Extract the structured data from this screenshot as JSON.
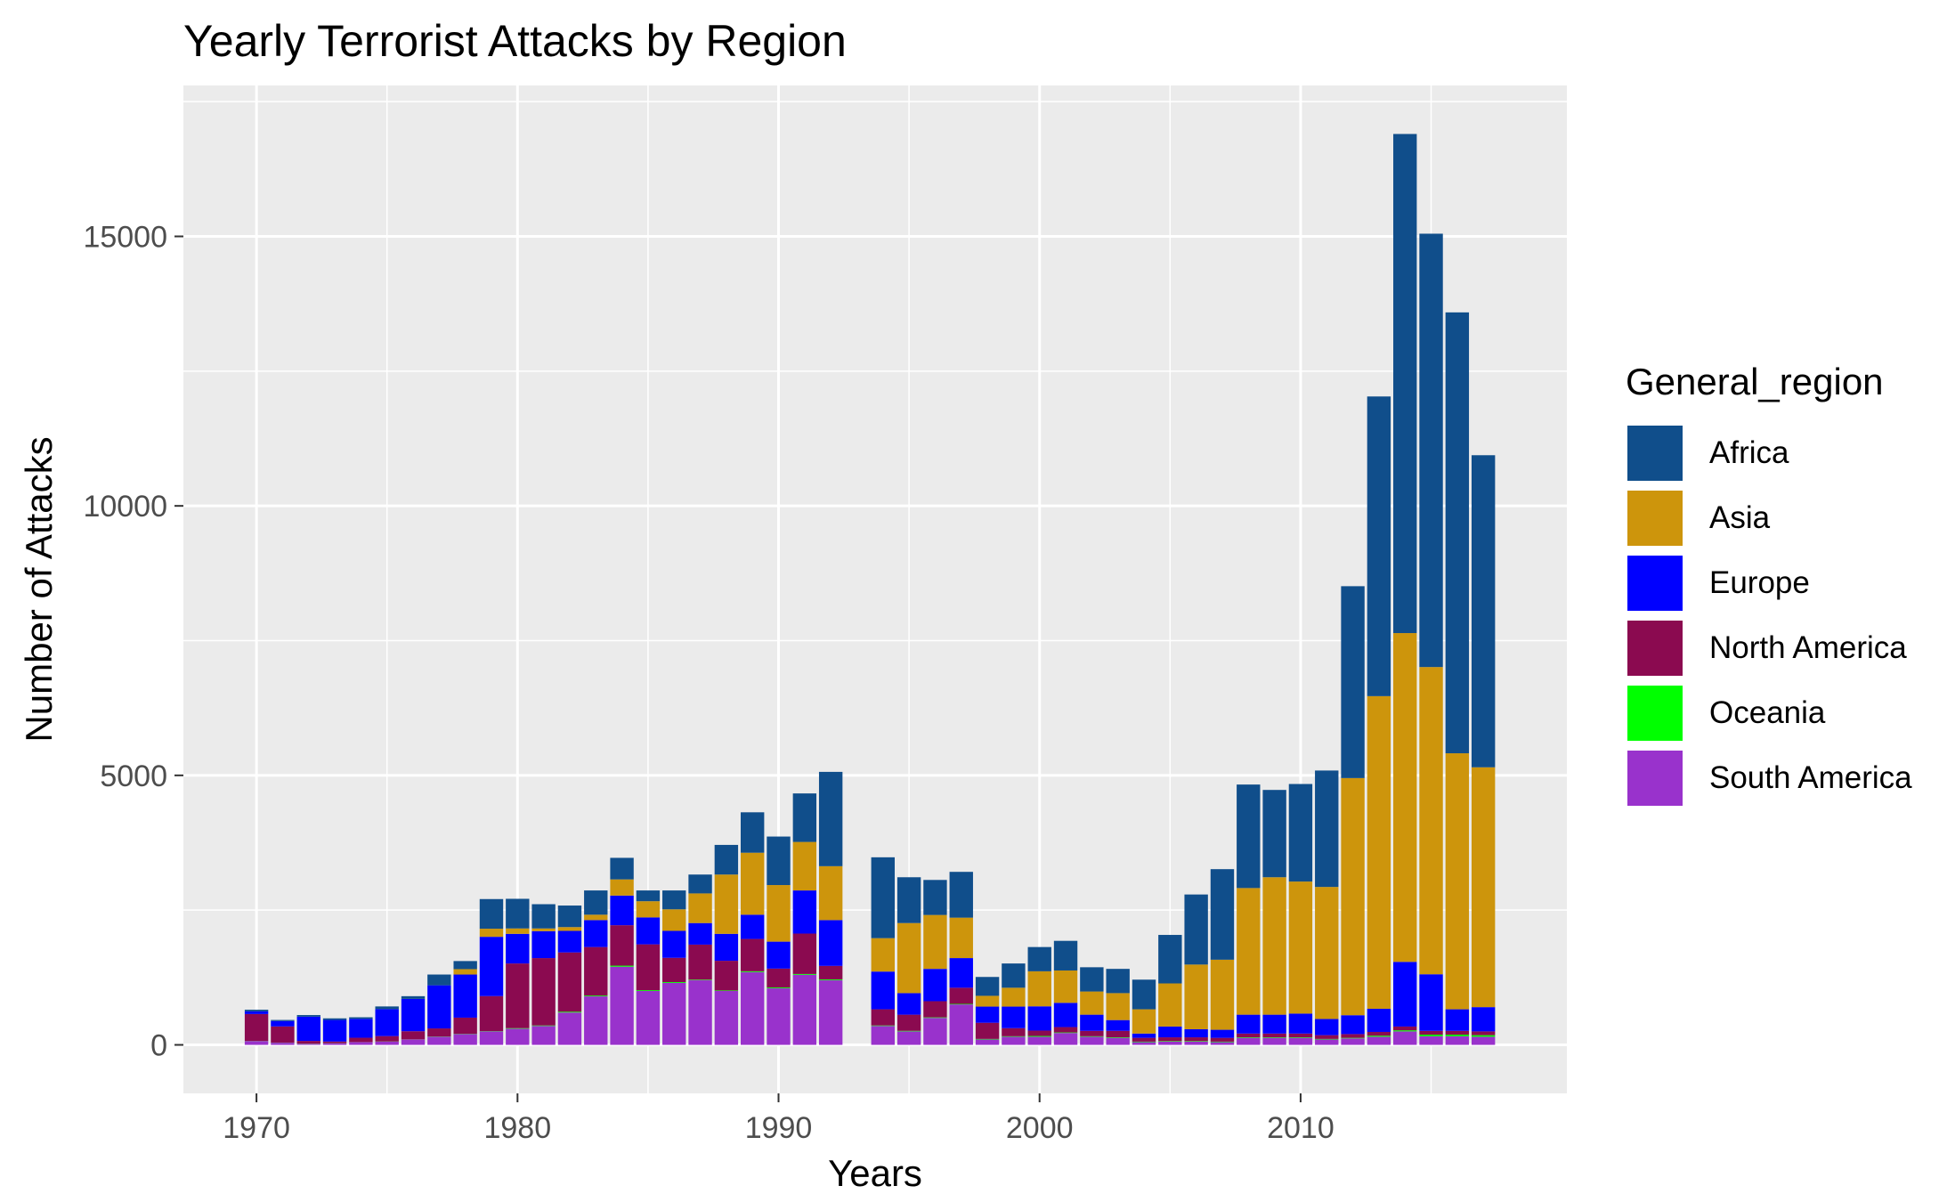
{
  "chart_data": {
    "type": "bar",
    "stacked": true,
    "title": "Yearly Terrorist Attacks by Region",
    "xlabel": "Years",
    "ylabel": "Number of Attacks",
    "legend_title": "General_region",
    "legend_position": "right",
    "grid": true,
    "xlim": [
      1967.2,
      2020.2
    ],
    "ylim": [
      -900,
      17800
    ],
    "x_ticks": [
      1970,
      1980,
      1990,
      2000,
      2010
    ],
    "y_ticks": [
      0,
      5000,
      10000,
      15000
    ],
    "x": [
      1970,
      1971,
      1972,
      1973,
      1974,
      1975,
      1976,
      1977,
      1978,
      1979,
      1980,
      1981,
      1982,
      1983,
      1984,
      1985,
      1986,
      1987,
      1988,
      1989,
      1990,
      1991,
      1992,
      1994,
      1995,
      1996,
      1997,
      1998,
      1999,
      2000,
      2001,
      2002,
      2003,
      2004,
      2005,
      2006,
      2007,
      2008,
      2009,
      2010,
      2011,
      2012,
      2013,
      2014,
      2015,
      2016,
      2017
    ],
    "series": [
      {
        "name": "South America",
        "color": "#9932CC",
        "values": [
          70,
          40,
          20,
          30,
          50,
          60,
          100,
          150,
          200,
          250,
          300,
          350,
          600,
          900,
          1450,
          1000,
          1150,
          1200,
          1000,
          1350,
          1050,
          1300,
          1200,
          350,
          250,
          500,
          750,
          100,
          150,
          150,
          220,
          150,
          130,
          50,
          60,
          60,
          50,
          130,
          130,
          130,
          100,
          120,
          150,
          250,
          160,
          160,
          150
        ]
      },
      {
        "name": "Oceania",
        "color": "#00FF00",
        "values": [
          2,
          2,
          3,
          2,
          2,
          3,
          3,
          5,
          5,
          5,
          10,
          10,
          15,
          15,
          20,
          15,
          15,
          10,
          10,
          15,
          15,
          15,
          15,
          10,
          10,
          10,
          10,
          10,
          10,
          15,
          10,
          10,
          10,
          10,
          10,
          10,
          10,
          10,
          10,
          10,
          10,
          10,
          20,
          20,
          30,
          30,
          30
        ]
      },
      {
        "name": "North America",
        "color": "#8B0A50",
        "values": [
          500,
          300,
          50,
          30,
          80,
          100,
          150,
          150,
          300,
          650,
          1200,
          1250,
          1100,
          900,
          750,
          850,
          450,
          650,
          550,
          600,
          350,
          750,
          250,
          300,
          300,
          300,
          300,
          300,
          150,
          100,
          100,
          100,
          120,
          70,
          70,
          70,
          70,
          70,
          70,
          70,
          70,
          70,
          70,
          70,
          70,
          70,
          70
        ]
      },
      {
        "name": "Europe",
        "color": "#0000FF",
        "values": [
          50,
          100,
          450,
          400,
          350,
          500,
          600,
          800,
          800,
          1100,
          550,
          500,
          400,
          500,
          550,
          500,
          500,
          400,
          500,
          450,
          500,
          800,
          850,
          700,
          400,
          600,
          550,
          300,
          400,
          450,
          450,
          300,
          200,
          80,
          200,
          150,
          150,
          350,
          350,
          370,
          300,
          350,
          430,
          1200,
          1050,
          400,
          450
        ]
      },
      {
        "name": "Asia",
        "color": "#CD950C",
        "values": [
          0,
          0,
          0,
          0,
          0,
          0,
          0,
          0,
          100,
          150,
          100,
          50,
          70,
          100,
          300,
          300,
          400,
          550,
          1100,
          1150,
          1050,
          900,
          1000,
          620,
          1300,
          1000,
          750,
          200,
          350,
          650,
          600,
          430,
          500,
          450,
          800,
          1200,
          1300,
          2350,
          2550,
          2450,
          2450,
          4400,
          5800,
          6100,
          5700,
          4750,
          4450
        ]
      },
      {
        "name": "Africa",
        "color": "#104E8B",
        "values": [
          30,
          20,
          30,
          30,
          30,
          50,
          50,
          200,
          150,
          550,
          550,
          450,
          400,
          450,
          400,
          200,
          350,
          350,
          550,
          750,
          900,
          900,
          1750,
          1500,
          850,
          650,
          850,
          350,
          450,
          450,
          550,
          450,
          450,
          550,
          900,
          1300,
          1680,
          1920,
          1620,
          1810,
          2160,
          3560,
          5560,
          9260,
          8040,
          8180,
          5790
        ]
      }
    ]
  }
}
